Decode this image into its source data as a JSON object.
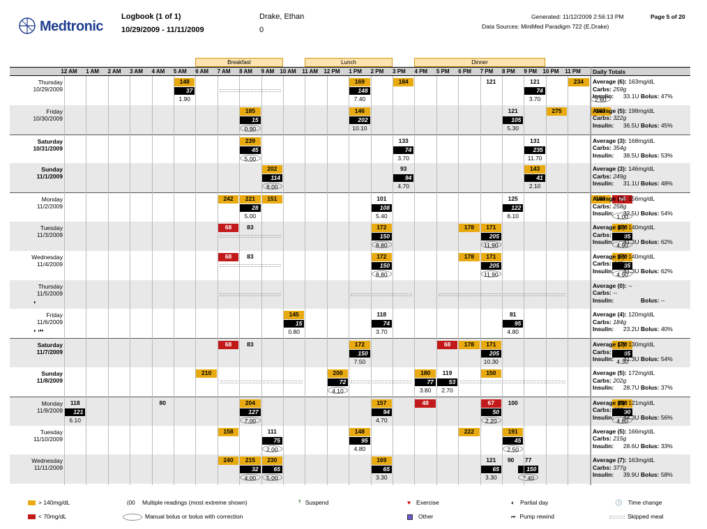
{
  "header": {
    "brand": "Medtronic",
    "title": "Logbook (1 of 1)",
    "date_range": "10/29/2009 - 11/11/2009",
    "patient_name": "Drake, Ethan",
    "patient_id": "0",
    "generated": "Generated: 11/12/2009 2:56:13 PM",
    "page": "Page 5 of 20",
    "data_sources": "Data Sources: MiniMed Paradigm 722 (E.Drake)"
  },
  "meals": [
    "Breakfast",
    "Lunch",
    "Dinner"
  ],
  "times": [
    "12 AM",
    "1 AM",
    "2 AM",
    "3 AM",
    "4 AM",
    "5 AM",
    "6 AM",
    "7 AM",
    "8 AM",
    "9 AM",
    "10 AM",
    "11 AM",
    "12 PM",
    "1 PM",
    "2 PM",
    "3 PM",
    "4 PM",
    "5 PM",
    "6 PM",
    "7 PM",
    "8 PM",
    "9 PM",
    "10 PM",
    "11 PM"
  ],
  "daily_totals_header": "Daily Totals",
  "colors": {
    "high": "#e8aa10",
    "low": "#c21a1a",
    "carbs": "#000000",
    "shade": "#e8e8e8"
  },
  "days": [
    {
      "dow": "Thursday",
      "date": "10/29/2009",
      "bold": false,
      "shade": false,
      "marks": "",
      "cells": [
        {
          "h": 6,
          "v": "148",
          "t": "hi"
        },
        {
          "h": 14,
          "v": "169",
          "t": "hi"
        },
        {
          "h": 16,
          "v": "184",
          "t": "hi"
        },
        {
          "h": 20,
          "v": "121",
          "t": "n"
        },
        {
          "h": 22,
          "v": "121",
          "t": "n"
        },
        {
          "h": 24,
          "v": "234",
          "t": "hi"
        }
      ],
      "carbs": [
        {
          "h": 6,
          "v": "37"
        },
        {
          "h": 14,
          "v": "148"
        },
        {
          "h": 22,
          "v": "74"
        }
      ],
      "ins": [
        {
          "h": 6,
          "v": "1.90",
          "o": false
        },
        {
          "h": 14,
          "v": "7.40",
          "o": false
        },
        {
          "h": 22,
          "v": "3.70",
          "o": false
        },
        {
          "h": 25,
          "v": "2.60",
          "o": true
        }
      ],
      "skip": [
        [
          8,
          11
        ]
      ],
      "tot": {
        "avg": "Average (6):",
        "avgv": "163mg/dL",
        "carbs": "259g",
        "insulin": "33.1U",
        "bolus": "47%"
      }
    },
    {
      "dow": "Friday",
      "date": "10/30/2009",
      "bold": false,
      "shade": true,
      "marks": "",
      "cells": [
        {
          "h": 9,
          "v": "185",
          "t": "hi"
        },
        {
          "h": 14,
          "v": "146",
          "t": "hi"
        },
        {
          "h": 21,
          "v": "121",
          "t": "n"
        },
        {
          "h": 23,
          "v": "275",
          "t": "hi"
        },
        {
          "h": 25,
          "v": "263",
          "t": "hi"
        }
      ],
      "carbs": [
        {
          "h": 9,
          "v": "15"
        },
        {
          "h": 14,
          "v": "202"
        },
        {
          "h": 21,
          "v": "105"
        }
      ],
      "ins": [
        {
          "h": 9,
          "v": "0.90",
          "o": true
        },
        {
          "h": 14,
          "v": "10.10",
          "o": false
        },
        {
          "h": 21,
          "v": "5.30",
          "o": false
        }
      ],
      "skip": [],
      "tot": {
        "avg": "Average (5):",
        "avgv": "198mg/dL",
        "carbs": "322g",
        "insulin": "36.5U",
        "bolus": "45%"
      }
    },
    {
      "dow": "Saturday",
      "date": "10/31/2009",
      "bold": true,
      "shade": false,
      "marks": "",
      "cells": [
        {
          "h": 9,
          "v": "239",
          "t": "hi"
        },
        {
          "h": 16,
          "v": "133",
          "t": "n"
        },
        {
          "h": 22,
          "v": "131",
          "t": "n"
        }
      ],
      "carbs": [
        {
          "h": 9,
          "v": "45"
        },
        {
          "h": 16,
          "v": "74"
        },
        {
          "h": 22,
          "v": "235"
        }
      ],
      "ins": [
        {
          "h": 9,
          "v": "5.00",
          "o": true
        },
        {
          "h": 16,
          "v": "3.70",
          "o": false
        },
        {
          "h": 22,
          "v": "11.70",
          "o": false
        }
      ],
      "skip": [],
      "tot": {
        "avg": "Average (3):",
        "avgv": "168mg/dL",
        "carbs": "354g",
        "insulin": "38.5U",
        "bolus": "53%"
      }
    },
    {
      "dow": "Sunday",
      "date": "11/1/2009",
      "bold": true,
      "shade": true,
      "marks": "",
      "cells": [
        {
          "h": 10,
          "v": "202",
          "t": "hi"
        },
        {
          "h": 16,
          "v": "93",
          "t": "n"
        },
        {
          "h": 22,
          "v": "143",
          "t": "hi"
        }
      ],
      "carbs": [
        {
          "h": 10,
          "v": "114"
        },
        {
          "h": 16,
          "v": "94"
        },
        {
          "h": 22,
          "v": "41"
        }
      ],
      "ins": [
        {
          "h": 10,
          "v": "8.00",
          "o": true
        },
        {
          "h": 16,
          "v": "4.70",
          "o": false
        },
        {
          "h": 22,
          "v": "2.10",
          "o": false
        }
      ],
      "skip": [],
      "tot": {
        "avg": "Average (3):",
        "avgv": "146mg/dL",
        "carbs": "249g",
        "insulin": "31.1U",
        "bolus": "48%"
      }
    },
    {
      "dow": "Monday",
      "date": "11/2/2009",
      "bold": false,
      "shade": false,
      "marks": "",
      "cells": [
        {
          "h": 8,
          "v": "242",
          "t": "hi"
        },
        {
          "h": 9,
          "v": "221",
          "t": "hi"
        },
        {
          "h": 10,
          "v": "151",
          "t": "hi"
        },
        {
          "h": 15,
          "v": "101",
          "t": "n"
        },
        {
          "h": 21,
          "v": "125",
          "t": "n"
        },
        {
          "h": 25,
          "v": "186",
          "t": "hi"
        },
        {
          "h": 26,
          "v": "68",
          "t": "lo"
        }
      ],
      "carbs": [
        {
          "h": 9,
          "v": "28"
        },
        {
          "h": 15,
          "v": "108"
        },
        {
          "h": 21,
          "v": "122"
        }
      ],
      "ins": [
        {
          "h": 9,
          "v": "5.00",
          "o": false
        },
        {
          "h": 15,
          "v": "5.40",
          "o": false
        },
        {
          "h": 21,
          "v": "6.10",
          "o": false
        },
        {
          "h": 26,
          "v": "1.00",
          "o": true
        }
      ],
      "skip": [],
      "tot": {
        "avg": "Average (7):",
        "avgv": "156mg/dL",
        "carbs": "258g",
        "insulin": "32.5U",
        "bolus": "54%"
      }
    },
    {
      "dow": "Tuesday",
      "date": "11/3/2009",
      "bold": false,
      "shade": true,
      "marks": "",
      "cells": [
        {
          "h": 8,
          "v": "68",
          "t": "lo"
        },
        {
          "h": 9,
          "v": "83",
          "t": "n"
        },
        {
          "h": 15,
          "v": "172",
          "t": "hi"
        },
        {
          "h": 19,
          "v": "178",
          "t": "hi"
        },
        {
          "h": 20,
          "v": "171",
          "t": "hi"
        },
        {
          "h": 26,
          "v": "170",
          "t": "hi"
        }
      ],
      "carbs": [
        {
          "h": 15,
          "v": "150"
        },
        {
          "h": 20,
          "v": "205"
        },
        {
          "h": 26,
          "v": "85"
        }
      ],
      "ins": [
        {
          "h": 15,
          "v": "8.80",
          "o": true
        },
        {
          "h": 20,
          "v": "11.90",
          "o": true
        },
        {
          "h": 26,
          "v": "4.90",
          "o": true
        }
      ],
      "skip": [
        [
          8,
          11
        ]
      ],
      "tot": {
        "avg": "Average (6):",
        "avgv": "140mg/dL",
        "carbs": "440g",
        "insulin": "41.3U",
        "bolus": "62%"
      }
    },
    {
      "dow": "Wednesday",
      "date": "11/4/2009",
      "bold": false,
      "shade": false,
      "marks": "",
      "cells": [
        {
          "h": 8,
          "v": "68",
          "t": "lo"
        },
        {
          "h": 9,
          "v": "83",
          "t": "n"
        },
        {
          "h": 15,
          "v": "172",
          "t": "hi"
        },
        {
          "h": 19,
          "v": "178",
          "t": "hi"
        },
        {
          "h": 20,
          "v": "171",
          "t": "hi"
        },
        {
          "h": 26,
          "v": "170",
          "t": "hi"
        }
      ],
      "carbs": [
        {
          "h": 15,
          "v": "150"
        },
        {
          "h": 20,
          "v": "205"
        },
        {
          "h": 26,
          "v": "85"
        }
      ],
      "ins": [
        {
          "h": 15,
          "v": "8.80",
          "o": true
        },
        {
          "h": 20,
          "v": "11.90",
          "o": true
        },
        {
          "h": 26,
          "v": "4.90",
          "o": true
        }
      ],
      "skip": [
        [
          8,
          11
        ]
      ],
      "tot": {
        "avg": "Average (6):",
        "avgv": "140mg/dL",
        "carbs": "440g",
        "insulin": "41.3U",
        "bolus": "62%"
      }
    },
    {
      "dow": "Thursday",
      "date": "11/5/2009",
      "bold": false,
      "shade": true,
      "marks": "◐",
      "cells": [],
      "carbs": [],
      "ins": [],
      "skip": [
        [
          8,
          11
        ],
        [
          14,
          17
        ],
        [
          18,
          24
        ]
      ],
      "tot": {
        "avg": "Average (0):",
        "avgv": "--",
        "carbs": "--",
        "insulin": "",
        "bolus": "--"
      }
    },
    {
      "dow": "Friday",
      "date": "11/6/2009",
      "bold": false,
      "shade": false,
      "marks": "◐ ⏮",
      "cells": [
        {
          "h": 11,
          "v": "145",
          "t": "hi"
        },
        {
          "h": 15,
          "v": "118",
          "t": "n"
        },
        {
          "h": 21,
          "v": "81",
          "t": "n"
        }
      ],
      "carbs": [
        {
          "h": 11,
          "v": "15"
        },
        {
          "h": 15,
          "v": "74"
        },
        {
          "h": 21,
          "v": "95"
        }
      ],
      "ins": [
        {
          "h": 11,
          "v": "0.80",
          "o": false
        },
        {
          "h": 15,
          "v": "3.70",
          "o": false
        },
        {
          "h": 21,
          "v": "4.80",
          "o": false
        }
      ],
      "skip": [],
      "tot": {
        "avg": "Average (4):",
        "avgv": "120mg/dL",
        "carbs": "184g",
        "insulin": "23.2U",
        "bolus": "40%"
      }
    },
    {
      "dow": "Saturday",
      "date": "11/7/2009",
      "bold": true,
      "shade": true,
      "marks": "",
      "cells": [
        {
          "h": 8,
          "v": "68",
          "t": "lo"
        },
        {
          "h": 9,
          "v": "83",
          "t": "n"
        },
        {
          "h": 14,
          "v": "172",
          "t": "hi"
        },
        {
          "h": 18,
          "v": "68",
          "t": "lo"
        },
        {
          "h": 19,
          "v": "178",
          "t": "hi"
        },
        {
          "h": 20,
          "v": "171",
          "t": "hi"
        },
        {
          "h": 26,
          "v": "170",
          "t": "hi"
        }
      ],
      "carbs": [
        {
          "h": 14,
          "v": "150"
        },
        {
          "h": 20,
          "v": "205"
        },
        {
          "h": 26,
          "v": "85"
        }
      ],
      "ins": [
        {
          "h": 14,
          "v": "7.50",
          "o": false
        },
        {
          "h": 20,
          "v": "10.30",
          "o": false
        },
        {
          "h": 26,
          "v": "4.30",
          "o": false
        }
      ],
      "skip": [],
      "tot": {
        "avg": "Average (7):",
        "avgv": "130mg/dL",
        "carbs": "440g",
        "insulin": "41.3U",
        "bolus": "54%"
      }
    },
    {
      "dow": "Sunday",
      "date": "11/8/2009",
      "bold": true,
      "shade": false,
      "marks": "",
      "cells": [
        {
          "h": 7,
          "v": "210",
          "t": "hi"
        },
        {
          "h": 13,
          "v": "200",
          "t": "hi"
        },
        {
          "h": 17,
          "v": "180",
          "t": "hi"
        },
        {
          "h": 18,
          "v": "119",
          "t": "n"
        },
        {
          "h": 20,
          "v": "150",
          "t": "hi"
        }
      ],
      "carbs": [
        {
          "h": 13,
          "v": "72"
        },
        {
          "h": 17,
          "v": "77"
        },
        {
          "h": 18,
          "v": "53"
        }
      ],
      "ins": [
        {
          "h": 13,
          "v": "4.10",
          "o": true
        },
        {
          "h": 17,
          "v": "3.80",
          "o": false
        },
        {
          "h": 18,
          "v": "2.70",
          "o": false
        }
      ],
      "skip": [
        [
          8,
          12
        ],
        [
          14,
          17
        ],
        [
          19,
          24
        ]
      ],
      "tot": {
        "avg": "Average (5):",
        "avgv": "172mg/dL",
        "carbs": "202g",
        "insulin": "28.7U",
        "bolus": "37%"
      }
    },
    {
      "dow": "Monday",
      "date": "11/9/2009",
      "bold": false,
      "shade": true,
      "marks": "",
      "cells": [
        {
          "h": 1,
          "v": "118",
          "t": "n"
        },
        {
          "h": 5,
          "v": "80",
          "t": "n"
        },
        {
          "h": 9,
          "v": "204",
          "t": "hi"
        },
        {
          "h": 15,
          "v": "157",
          "t": "hi"
        },
        {
          "h": 17,
          "v": "48",
          "t": "lo"
        },
        {
          "h": 20,
          "v": "67",
          "t": "lo"
        },
        {
          "h": 21,
          "v": "100",
          "t": "n"
        },
        {
          "h": 26,
          "v": "190",
          "t": "hi"
        }
      ],
      "carbs": [
        {
          "h": 1,
          "v": "121"
        },
        {
          "h": 9,
          "v": "127"
        },
        {
          "h": 15,
          "v": "94"
        },
        {
          "h": 20,
          "v": "50"
        },
        {
          "h": 26,
          "v": "90"
        }
      ],
      "ins": [
        {
          "h": 1,
          "v": "6.10",
          "o": false
        },
        {
          "h": 9,
          "v": "7.00",
          "o": true
        },
        {
          "h": 15,
          "v": "4.70",
          "o": false
        },
        {
          "h": 20,
          "v": "2.20",
          "o": true
        },
        {
          "h": 26,
          "v": "4.80",
          "o": true
        }
      ],
      "skip": [],
      "tot": {
        "avg": "Average (8):",
        "avgv": "121mg/dL",
        "carbs": "482g",
        "insulin": "44.3U",
        "bolus": "56%"
      }
    },
    {
      "dow": "Tuesday",
      "date": "11/10/2009",
      "bold": false,
      "shade": false,
      "marks": "",
      "cells": [
        {
          "h": 8,
          "v": "158",
          "t": "hi"
        },
        {
          "h": 10,
          "v": "111",
          "t": "n"
        },
        {
          "h": 14,
          "v": "148",
          "t": "hi"
        },
        {
          "h": 19,
          "v": "222",
          "t": "hi"
        },
        {
          "h": 21,
          "v": "191",
          "t": "hi"
        }
      ],
      "carbs": [
        {
          "h": 10,
          "v": "75"
        },
        {
          "h": 14,
          "v": "95"
        },
        {
          "h": 21,
          "v": "45"
        }
      ],
      "ins": [
        {
          "h": 10,
          "v": "2.00",
          "o": true
        },
        {
          "h": 14,
          "v": "4.80",
          "o": false
        },
        {
          "h": 21,
          "v": "2.50",
          "o": true
        }
      ],
      "skip": [],
      "tot": {
        "avg": "Average (5):",
        "avgv": "166mg/dL",
        "carbs": "215g",
        "insulin": "28.6U",
        "bolus": "33%"
      }
    },
    {
      "dow": "Wednesday",
      "date": "11/11/2009",
      "bold": false,
      "shade": true,
      "marks": "",
      "cells": [
        {
          "h": 8,
          "v": "240",
          "t": "hi"
        },
        {
          "h": 9,
          "v": "215",
          "t": "hi"
        },
        {
          "h": 10,
          "v": "230",
          "t": "hi"
        },
        {
          "h": 15,
          "v": "169",
          "t": "hi"
        },
        {
          "h": 20,
          "v": "121",
          "t": "n"
        },
        {
          "h": 20.9,
          "v": "90",
          "t": "n"
        },
        {
          "h": 21.7,
          "v": "77",
          "t": "n"
        }
      ],
      "carbs": [
        {
          "h": 9,
          "v": "32"
        },
        {
          "h": 10,
          "v": "65"
        },
        {
          "h": 15,
          "v": "65"
        },
        {
          "h": 20,
          "v": "65"
        },
        {
          "h": 21.7,
          "v": "150"
        }
      ],
      "ins": [
        {
          "h": 9,
          "v": "4.00",
          "o": true
        },
        {
          "h": 10,
          "v": "5.00",
          "o": true
        },
        {
          "h": 15,
          "v": "3.30",
          "o": false
        },
        {
          "h": 20,
          "v": "3.30",
          "o": false
        },
        {
          "h": 21.7,
          "v": "7.40",
          "o": true
        }
      ],
      "skip": [],
      "tot": {
        "avg": "Average (7):",
        "avgv": "163mg/dL",
        "carbs": "377g",
        "insulin": "39.9U",
        "bolus": "58%"
      }
    }
  ],
  "totals_labels": {
    "carbs": "Carbs:",
    "insulin": "Insulin:",
    "bolus": "Bolus:"
  },
  "legend": {
    "high": "> 140mg/dL",
    "low": "< 70mg/dL",
    "multiple": "Multiple readings (most extreme shown)",
    "multiple_glyph": "(00",
    "manual": "Manual bolus or bolus with correction",
    "suspend": "Suspend",
    "exercise": "Exercise",
    "other": "Other",
    "partial": "Partial day",
    "rewind": "Pump rewind",
    "timechange": "Time change",
    "skipped": "Skipped meal"
  }
}
